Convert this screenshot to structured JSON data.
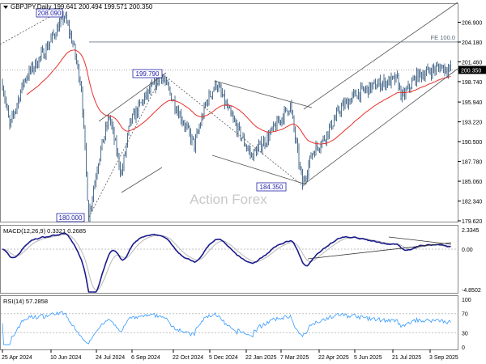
{
  "header": {
    "symbol": "GBPJPY,Daily",
    "ohlc": "199.641 200.494 199.571 200.350"
  },
  "watermark": "Action Forex",
  "annotations": {
    "high_label": "208.090",
    "swing_label": "199.790",
    "low2_label": "184.350",
    "low_label": "180.000",
    "fe_label": "FE 100.0",
    "current_price": "200.350"
  },
  "colors": {
    "candle": "#4f6f8f",
    "ma": "#e8302a",
    "macd": "#1a1a8c",
    "signal": "#b8b8b8",
    "rsi": "#3399ff",
    "grid": "#c0c0c0"
  },
  "chart_data": [
    {
      "type": "candlestick",
      "title": "GBPJPY,Daily",
      "ylim": [
        179.62,
        209.0
      ],
      "yticks": [
        "206.900",
        "204.180",
        "201.460",
        "198.740",
        "195.940",
        "193.220",
        "190.500",
        "187.780",
        "185.060",
        "182.340",
        "179.620"
      ],
      "xticks": [
        "25 Apr 2024",
        "10 Jun 2024",
        "24 Jul 2024",
        "6 Sep 2024",
        "22 Oct 2024",
        "5 Dec 2024",
        "22 Jan 2025",
        "7 Mar 2025",
        "22 Apr 2025",
        "5 Jun 2025",
        "21 Jul 2025",
        "3 Sep 2025"
      ],
      "waypoints_bar_price": [
        [
          0,
          198.5
        ],
        [
          6,
          192.5
        ],
        [
          18,
          199
        ],
        [
          35,
          203
        ],
        [
          51,
          207.8
        ],
        [
          58,
          204
        ],
        [
          65,
          198
        ],
        [
          71,
          180.2
        ],
        [
          79,
          188
        ],
        [
          88,
          194
        ],
        [
          98,
          186
        ],
        [
          105,
          193
        ],
        [
          115,
          196
        ],
        [
          131,
          199.6
        ],
        [
          141,
          196
        ],
        [
          158,
          190
        ],
        [
          168,
          196
        ],
        [
          176,
          198.5
        ],
        [
          188,
          194
        ],
        [
          205,
          188.5
        ],
        [
          218,
          191
        ],
        [
          237,
          195.5
        ],
        [
          241,
          191
        ],
        [
          247,
          184.5
        ],
        [
          255,
          189
        ],
        [
          265,
          191
        ],
        [
          278,
          195
        ],
        [
          291,
          197
        ],
        [
          311,
          198.5
        ],
        [
          325,
          199
        ],
        [
          329,
          196.5
        ],
        [
          341,
          199.5
        ],
        [
          361,
          200.8
        ],
        [
          369,
          200.35
        ]
      ],
      "series": [
        {
          "name": "price"
        },
        {
          "name": "moving average"
        }
      ],
      "levels": {
        "fe_100": 204.18,
        "current": 200.35
      }
    },
    {
      "type": "line",
      "title": "MACD(12,26,9) 0.3321 0.2685",
      "yticks": [
        "2.3345",
        "0.00",
        "-4.8502"
      ],
      "ylim": [
        -4.8502,
        2.3345
      ],
      "series": [
        {
          "name": "MACD"
        },
        {
          "name": "Signal"
        }
      ]
    },
    {
      "type": "line",
      "title": "RSI(14) 57.2858",
      "yticks": [
        "100",
        "70",
        "30",
        "0"
      ],
      "ylim": [
        0,
        100
      ],
      "series": [
        {
          "name": "RSI(14)"
        }
      ]
    }
  ]
}
